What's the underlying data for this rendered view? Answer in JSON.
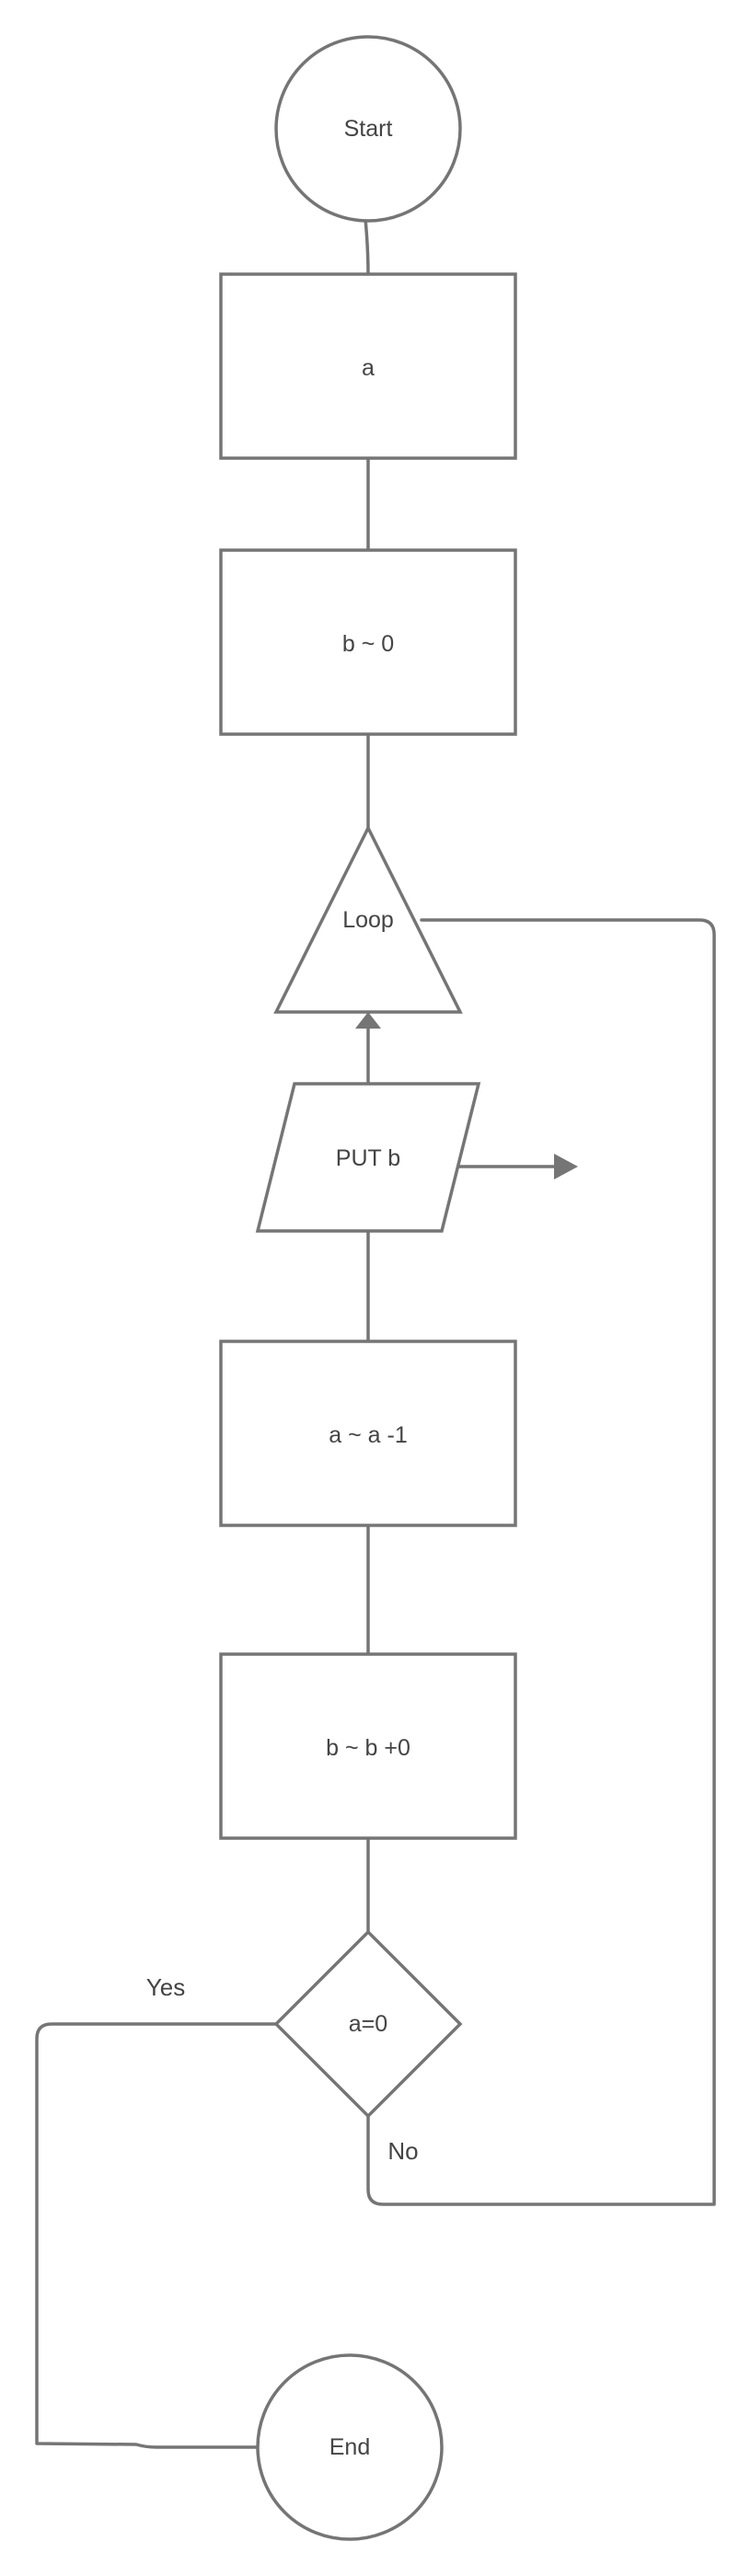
{
  "diagram": {
    "nodes": {
      "start": {
        "shape": "circle",
        "label": "Start"
      },
      "input_a": {
        "shape": "rectangle",
        "label": "a"
      },
      "init_b": {
        "shape": "rectangle",
        "label": "b ~ 0"
      },
      "loop": {
        "shape": "triangle",
        "label": "Loop"
      },
      "put_b": {
        "shape": "parallelogram",
        "label": "PUT b"
      },
      "dec_a": {
        "shape": "rectangle",
        "label": "a ~ a  -1"
      },
      "add_b": {
        "shape": "rectangle",
        "label": "b ~ b  +0"
      },
      "check": {
        "shape": "diamond",
        "label": "a=0"
      },
      "end": {
        "shape": "circle",
        "label": "End"
      }
    },
    "edges": {
      "yes_label": "Yes",
      "no_label": "No"
    },
    "colors": {
      "stroke": "#757575",
      "text": "#444444",
      "background": "#ffffff"
    }
  }
}
